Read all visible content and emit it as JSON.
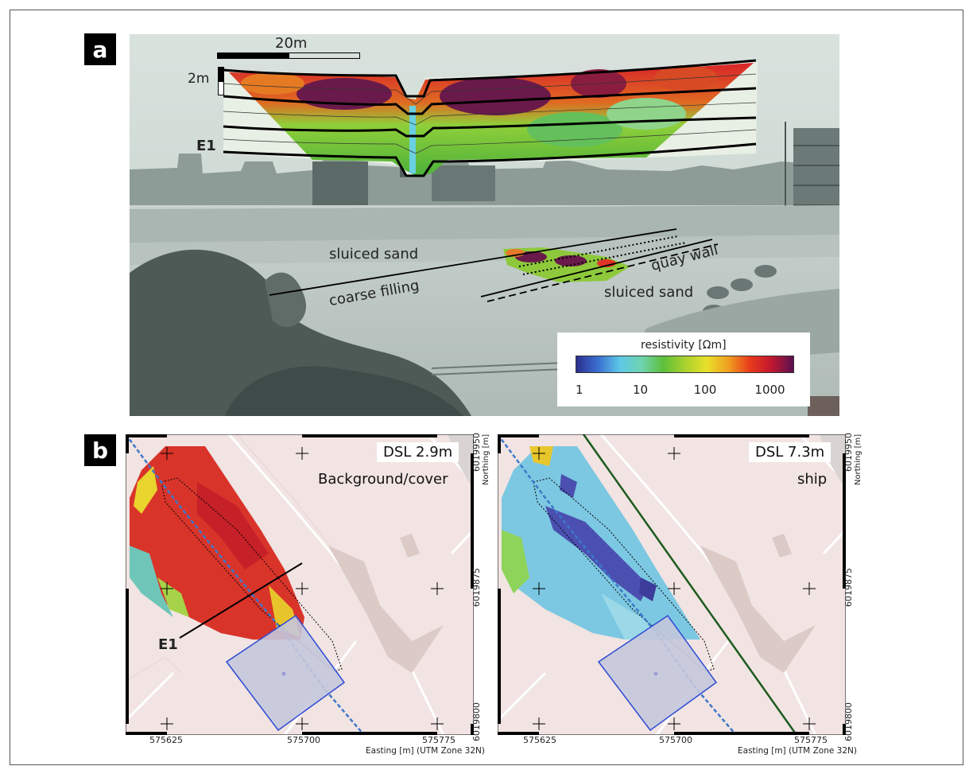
{
  "panels": {
    "a": {
      "letter": "a",
      "scale_horizontal": "20m",
      "scale_vertical": "2m",
      "profile_label": "E1",
      "annotations": {
        "sluiced_sand_upper": "sluiced sand",
        "coarse_filling": "coarse filling",
        "quay_wall": "quay wall",
        "sluiced_sand_lower": "sluiced sand"
      },
      "colorbar": {
        "title": "resistivity [Ωm]",
        "ticks": [
          "1",
          "10",
          "100",
          "1000"
        ],
        "colors": [
          "#2b2f8f",
          "#3b6fd0",
          "#5ec8e8",
          "#6fd3b0",
          "#5cbf3a",
          "#a9d12e",
          "#e8e02a",
          "#f0a020",
          "#e83a1c",
          "#c01830",
          "#5a1050"
        ]
      }
    },
    "b": {
      "letter": "b",
      "left_map": {
        "depth_label": "DSL 2.9m",
        "feature_label": "Background/cover",
        "profile_label": "E1"
      },
      "right_map": {
        "depth_label": "DSL 7.3m",
        "feature_label": "ship"
      },
      "easting_ticks": [
        "575625",
        "575700",
        "575775"
      ],
      "northing_ticks": [
        "6019950",
        "6019875",
        "6019800"
      ],
      "easting_axis_label": "Easting [m] (UTM Zone 32N)",
      "northing_axis_label": "Northing [m]"
    }
  }
}
